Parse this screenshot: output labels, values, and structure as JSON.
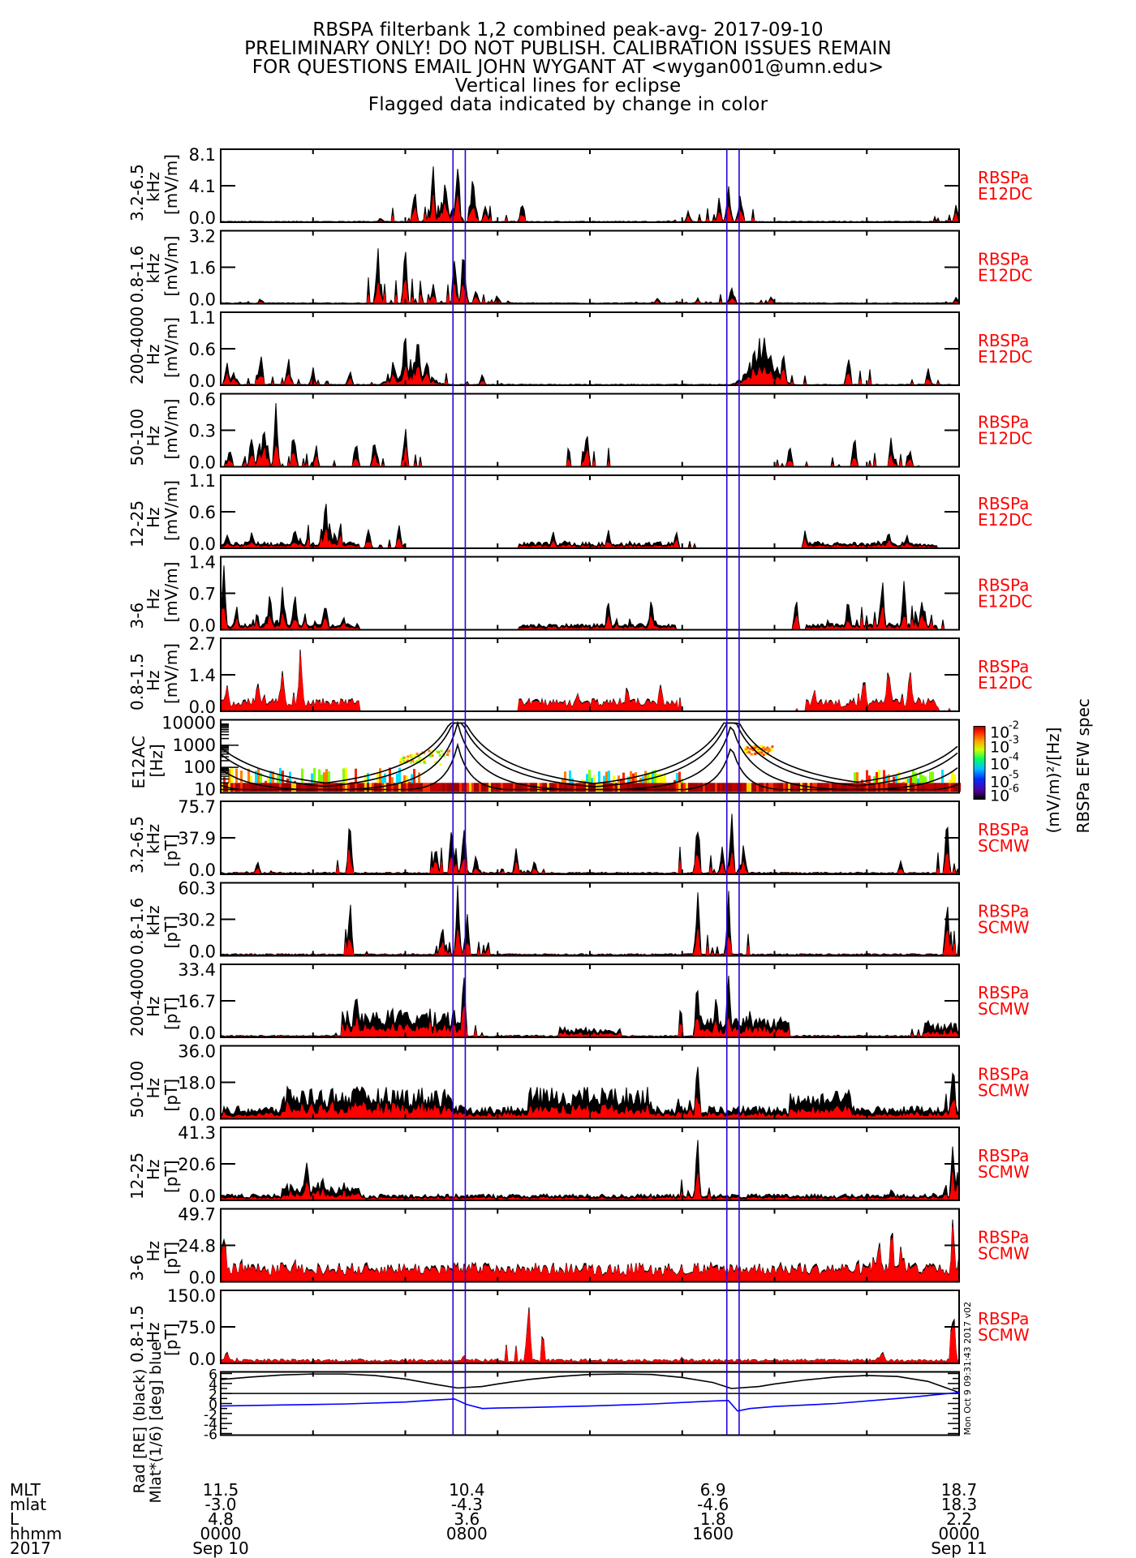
{
  "title": {
    "lines": [
      "RBSPA filterbank 1,2 combined peak-avg- 2017-09-10",
      "PRELIMINARY ONLY! DO NOT PUBLISH. CALIBRATION ISSUES REMAIN",
      "FOR QUESTIONS EMAIL JOHN WYGANT AT <wygan001@umn.edu>",
      "Vertical lines for eclipse",
      "Flagged data indicated by change in color"
    ]
  },
  "colors": {
    "trace_black": "#000000",
    "trace_flagged": "#ff0000",
    "eclipse_line": "#2a00d4",
    "right_label": "#ff0000",
    "ephem_blue": "#0000ff"
  },
  "stamp": "Mon Oct  9 09:31:43 2017 v02",
  "chart_data": {
    "type": "line",
    "title": "RBSPA filterbank 1,2 combined peak-avg- 2017-09-10",
    "x_range_hours": [
      0,
      24
    ],
    "eclipse_hours": [
      [
        7.55,
        7.95
      ],
      [
        16.45,
        16.85
      ]
    ],
    "panels": [
      {
        "band": "3.2-6.5",
        "unit_freq": "kHz",
        "unit": "[mV/m]",
        "ticks": [
          "8.1",
          "4.1",
          "0.0"
        ],
        "ylim": [
          0,
          8.1
        ],
        "right": [
          "RBSPa",
          "E12DC"
        ],
        "profile": "hf_e",
        "peaks": [
          [
            5.2,
            0.6
          ],
          [
            6.3,
            4.5
          ],
          [
            6.9,
            8.1
          ],
          [
            7.3,
            6.5
          ],
          [
            7.7,
            8.1
          ],
          [
            8.2,
            7.0
          ],
          [
            8.6,
            2.5
          ],
          [
            9.8,
            3.0
          ],
          [
            15.2,
            1.5
          ],
          [
            16.2,
            3.0
          ],
          [
            16.5,
            4.5
          ],
          [
            16.9,
            4.0
          ],
          [
            23.9,
            2.5
          ]
        ]
      },
      {
        "band": "0.8-1.6",
        "unit_freq": "kHz",
        "unit": "[mV/m]",
        "ticks": [
          "3.2",
          "1.6",
          "0.0"
        ],
        "ylim": [
          0,
          3.2
        ],
        "right": [
          "RBSPa",
          "E12DC"
        ],
        "profile": "hf_e",
        "peaks": [
          [
            1.3,
            0.3
          ],
          [
            5.1,
            3.2
          ],
          [
            6.0,
            3.0
          ],
          [
            6.9,
            1.2
          ],
          [
            7.6,
            2.5
          ],
          [
            7.9,
            3.2
          ],
          [
            8.3,
            0.9
          ],
          [
            9.0,
            0.5
          ],
          [
            14.2,
            0.3
          ],
          [
            15.5,
            0.3
          ],
          [
            16.6,
            1.2
          ],
          [
            17.9,
            0.4
          ],
          [
            23.9,
            0.4
          ]
        ]
      },
      {
        "band": "200-4000",
        "unit_freq": "Hz",
        "unit": "[mV/m]",
        "ticks": [
          "1.1",
          "0.6",
          "0.0"
        ],
        "ylim": [
          0,
          1.1
        ],
        "right": [
          "RBSPa",
          "E12DC"
        ],
        "profile": "mid_e",
        "peaks": [
          [
            0.2,
            0.4
          ],
          [
            0.4,
            0.3
          ],
          [
            1.3,
            0.6
          ],
          [
            2.2,
            0.5
          ],
          [
            3.0,
            0.3
          ],
          [
            4.2,
            0.3
          ],
          [
            5.6,
            0.4
          ],
          [
            6.0,
            1.0
          ],
          [
            6.4,
            1.1
          ],
          [
            6.7,
            0.5
          ],
          [
            8.5,
            0.2
          ],
          [
            17.5,
            0.8
          ],
          [
            18.3,
            0.7
          ],
          [
            20.4,
            0.7
          ],
          [
            23.0,
            0.3
          ]
        ]
      },
      {
        "band": "50-100",
        "unit_freq": "Hz",
        "unit": "[mV/m]",
        "ticks": [
          "0.6",
          "0.3",
          "0.0"
        ],
        "ylim": [
          0,
          0.6
        ],
        "right": [
          "RBSPa",
          "E12DC"
        ],
        "profile": "sparse",
        "peaks": [
          [
            0.3,
            0.2
          ],
          [
            1.0,
            0.3
          ],
          [
            1.4,
            0.5
          ],
          [
            1.8,
            0.6
          ],
          [
            2.4,
            0.3
          ],
          [
            3.1,
            0.2
          ],
          [
            4.4,
            0.3
          ],
          [
            5.0,
            0.3
          ],
          [
            6.0,
            0.4
          ],
          [
            11.9,
            0.4
          ],
          [
            18.5,
            0.2
          ],
          [
            20.6,
            0.3
          ],
          [
            21.8,
            0.3
          ],
          [
            22.4,
            0.2
          ]
        ]
      },
      {
        "band": "12-25",
        "unit_freq": "Hz",
        "unit": "[mV/m]",
        "ticks": [
          "1.1",
          "0.6",
          "0.0"
        ],
        "ylim": [
          0,
          1.1
        ],
        "right": [
          "RBSPa",
          "E12DC"
        ],
        "profile": "segmented",
        "peaks": [
          [
            0.2,
            0.3
          ],
          [
            1.0,
            0.3
          ],
          [
            2.4,
            0.5
          ],
          [
            3.4,
            1.0
          ],
          [
            3.7,
            0.3
          ],
          [
            4.8,
            0.4
          ],
          [
            5.8,
            0.4
          ],
          [
            10.8,
            0.3
          ],
          [
            12.6,
            0.3
          ],
          [
            14.8,
            0.3
          ],
          [
            19.0,
            0.3
          ],
          [
            21.7,
            0.4
          ],
          [
            22.3,
            0.3
          ]
        ]
      },
      {
        "band": "3-6",
        "unit_freq": "Hz",
        "unit": "[mV/m]",
        "ticks": [
          "1.4",
          "0.7",
          "0.0"
        ],
        "ylim": [
          0,
          1.4
        ],
        "right": [
          "RBSPa",
          "E12DC"
        ],
        "profile": "segmented",
        "peaks": [
          [
            0.1,
            1.4
          ],
          [
            0.5,
            0.6
          ],
          [
            1.6,
            0.8
          ],
          [
            2.0,
            0.9
          ],
          [
            2.4,
            1.0
          ],
          [
            3.4,
            0.8
          ],
          [
            4.0,
            0.3
          ],
          [
            12.6,
            0.8
          ],
          [
            14.0,
            0.7
          ],
          [
            18.7,
            0.7
          ],
          [
            20.4,
            0.8
          ],
          [
            21.5,
            1.3
          ],
          [
            22.2,
            1.2
          ],
          [
            22.8,
            0.8
          ]
        ]
      },
      {
        "band": "0.8-1.5",
        "unit_freq": "Hz",
        "unit": "[mV/m]",
        "ticks": [
          "2.7",
          "1.4",
          "0.0"
        ],
        "ylim": [
          0,
          2.7
        ],
        "right": [
          "RBSPa",
          "E12DC"
        ],
        "profile": "segmented_red",
        "peaks": [
          [
            0.2,
            1.4
          ],
          [
            1.2,
            1.5
          ],
          [
            2.0,
            1.8
          ],
          [
            2.6,
            2.7
          ],
          [
            3.2,
            0.5
          ],
          [
            11.6,
            0.9
          ],
          [
            13.2,
            1.1
          ],
          [
            14.3,
            1.4
          ],
          [
            19.3,
            1.0
          ],
          [
            20.9,
            1.9
          ],
          [
            21.7,
            2.7
          ],
          [
            22.4,
            1.9
          ],
          [
            23.0,
            0.8
          ]
        ]
      },
      {
        "band": "E12AC",
        "unit_freq": "",
        "unit": "[Hz]",
        "ticks": [
          "10000",
          "1000",
          "100",
          "10"
        ],
        "ylim": [
          10,
          10000
        ],
        "right": [],
        "profile": "spectrogram",
        "peaks": []
      },
      {
        "band": "3.2-6.5",
        "unit_freq": "kHz",
        "unit": "[pT]",
        "ticks": [
          "75.7",
          "37.9",
          "0.0"
        ],
        "ylim": [
          0,
          75.7
        ],
        "right": [
          "RBSPa",
          "SCMW"
        ],
        "profile": "hf_b",
        "peaks": [
          [
            1.2,
            15
          ],
          [
            4.2,
            75.7
          ],
          [
            7.0,
            40
          ],
          [
            7.5,
            75.7
          ],
          [
            7.9,
            75.7
          ],
          [
            8.3,
            30
          ],
          [
            9.6,
            28
          ],
          [
            10.2,
            20
          ],
          [
            15.5,
            75.7
          ],
          [
            16.3,
            40
          ],
          [
            16.6,
            75.7
          ],
          [
            17.0,
            40
          ],
          [
            22.1,
            15
          ],
          [
            23.6,
            75.7
          ]
        ]
      },
      {
        "band": "0.8-1.6",
        "unit_freq": "kHz",
        "unit": "[pT]",
        "ticks": [
          "60.3",
          "30.2",
          "0.0"
        ],
        "ylim": [
          0,
          60.3
        ],
        "right": [
          "RBSPa",
          "SCMW"
        ],
        "profile": "hf_b",
        "peaks": [
          [
            4.2,
            60.3
          ],
          [
            7.2,
            35
          ],
          [
            7.7,
            60.3
          ],
          [
            8.0,
            45
          ],
          [
            15.5,
            60.3
          ],
          [
            16.5,
            60.3
          ],
          [
            23.6,
            60.3
          ]
        ]
      },
      {
        "band": "200-4000",
        "unit_freq": "Hz",
        "unit": "[pT]",
        "ticks": [
          "33.4",
          "16.7",
          "0.0"
        ],
        "ylim": [
          0,
          33.4
        ],
        "right": [
          "RBSPa",
          "SCMW"
        ],
        "profile": "broad_b",
        "peaks": [
          [
            4.4,
            33.4
          ],
          [
            7.9,
            33.4
          ],
          [
            15.5,
            33.4
          ],
          [
            16.1,
            25
          ],
          [
            16.5,
            33.4
          ],
          [
            17.2,
            18
          ],
          [
            23.0,
            10
          ]
        ]
      },
      {
        "band": "50-100",
        "unit_freq": "Hz",
        "unit": "[pT]",
        "ticks": [
          "36.0",
          "18.0",
          "0.0"
        ],
        "ylim": [
          0,
          36.0
        ],
        "right": [
          "RBSPa",
          "SCMW"
        ],
        "profile": "broad_b2",
        "peaks": [
          [
            7.8,
            12
          ],
          [
            15.5,
            36
          ],
          [
            20.0,
            10
          ],
          [
            23.8,
            36
          ]
        ]
      },
      {
        "band": "12-25",
        "unit_freq": "Hz",
        "unit": "[pT]",
        "ticks": [
          "41.3",
          "20.6",
          "0.0"
        ],
        "ylim": [
          0,
          41.3
        ],
        "right": [
          "RBSPa",
          "SCMW"
        ],
        "profile": "low_b",
        "peaks": [
          [
            2.8,
            30
          ],
          [
            3.3,
            20
          ],
          [
            4.0,
            15
          ],
          [
            15.5,
            41.3
          ],
          [
            21.8,
            8
          ],
          [
            23.8,
            41.3
          ]
        ]
      },
      {
        "band": "3-6",
        "unit_freq": "Hz",
        "unit": "[pT]",
        "ticks": [
          "49.7",
          "24.8",
          "0.0"
        ],
        "ylim": [
          0,
          49.7
        ],
        "right": [
          "RBSPa",
          "SCMW"
        ],
        "profile": "low_b_red",
        "peaks": [
          [
            0.1,
            49.7
          ],
          [
            2.4,
            20
          ],
          [
            9.0,
            18
          ],
          [
            13.7,
            20
          ],
          [
            15.5,
            15
          ],
          [
            21.4,
            40
          ],
          [
            21.8,
            49.7
          ],
          [
            22.1,
            30
          ],
          [
            23.8,
            49.7
          ]
        ]
      },
      {
        "band": "0.8-1.5",
        "unit_freq": "Hz",
        "unit": "[pT]",
        "ticks": [
          "150.0",
          "75.0",
          "0.0"
        ],
        "ylim": [
          0,
          150.0
        ],
        "right": [
          "RBSPa",
          "SCMW"
        ],
        "profile": "low_red",
        "peaks": [
          [
            0.2,
            40
          ],
          [
            7.9,
            20
          ],
          [
            10.0,
            150
          ],
          [
            15.0,
            18
          ],
          [
            21.5,
            40
          ],
          [
            23.8,
            150
          ]
        ]
      }
    ],
    "ephemeris": {
      "ylabel_lines": [
        "Rad [RE] (black)",
        "Mlat*(1/6) [deg] blue"
      ],
      "ticks": [
        "6",
        "4",
        "2",
        "0",
        "-2",
        "-4",
        "-6"
      ],
      "ylim": [
        -6,
        6
      ],
      "rad_hours": [
        0,
        1,
        2,
        3,
        4,
        5,
        6,
        7,
        7.7,
        8.5,
        9,
        10,
        11,
        12,
        13,
        14,
        15,
        16,
        16.6,
        17.5,
        18,
        19,
        20,
        21,
        22,
        23,
        24
      ],
      "rad_values": [
        4.8,
        5.3,
        5.7,
        5.9,
        5.9,
        5.6,
        4.9,
        3.8,
        3.1,
        3.4,
        3.9,
        4.8,
        5.4,
        5.8,
        5.9,
        5.8,
        5.2,
        4.2,
        3.0,
        3.4,
        3.9,
        4.7,
        5.3,
        5.6,
        5.4,
        4.4,
        2.2
      ],
      "mlat6_hours": [
        0,
        2,
        4,
        6,
        7,
        7.6,
        8.0,
        8.5,
        9,
        10,
        12,
        14,
        16,
        16.5,
        16.8,
        17.2,
        18,
        20,
        22,
        24
      ],
      "mlat6_values": [
        -0.5,
        -0.3,
        -0.1,
        0.3,
        0.7,
        0.9,
        -0.2,
        -1.0,
        -0.9,
        -0.8,
        -0.5,
        -0.1,
        0.5,
        0.6,
        -1.5,
        -1.0,
        -0.6,
        0.0,
        1.0,
        2.2
      ]
    },
    "x_ticks": [
      {
        "MLT": "11.5",
        "mlat": "-3.0",
        "L": "4.8",
        "hhmm": "0000",
        "date": "Sep 10"
      },
      {
        "MLT": "10.4",
        "mlat": "-4.3",
        "L": "3.6",
        "hhmm": "0800",
        "date": ""
      },
      {
        "MLT": "6.9",
        "mlat": "-4.6",
        "L": "1.8",
        "hhmm": "1600",
        "date": ""
      },
      {
        "MLT": "18.7",
        "mlat": "18.3",
        "L": "2.2",
        "hhmm": "0000",
        "date": "Sep 11"
      }
    ],
    "row_labels": [
      "MLT",
      "mlat",
      "L",
      "hhmm",
      "2017"
    ],
    "colorbar": {
      "ticks": [
        "10",
        "10",
        "10",
        "10",
        "10"
      ],
      "exponents": [
        "-2",
        "-3",
        "-4",
        "-5",
        "-6"
      ],
      "unit_label": "(mV/m)²/[Hz]",
      "title": "RBSPa EFW spec"
    }
  }
}
